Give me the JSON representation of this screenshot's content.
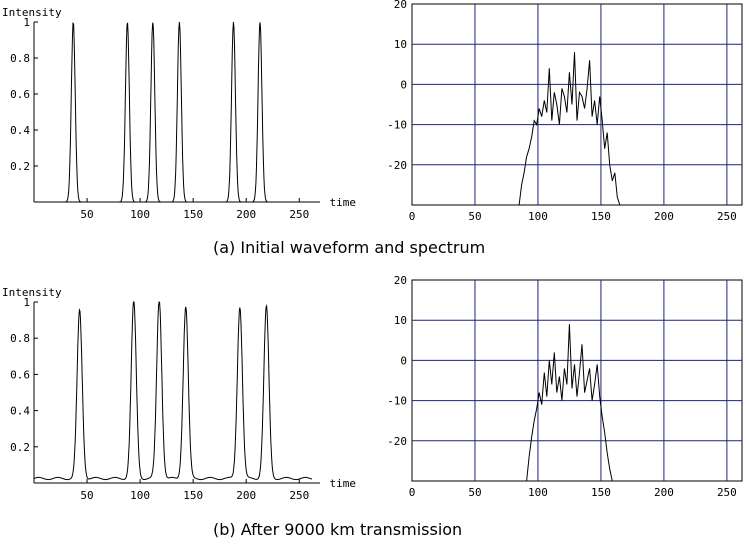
{
  "captions": [
    "(a) Initial waveform and spectrum",
    "(b) After 9000 km transmission"
  ],
  "chart_data": [
    {
      "id": "a-waveform",
      "type": "line",
      "title": "",
      "ylabel": "Intensity",
      "xlabel": "time",
      "xlim": [
        0,
        262
      ],
      "ylim": [
        0,
        1.0
      ],
      "xticks": [
        50,
        100,
        150,
        200,
        250
      ],
      "yticks": [
        0.2,
        0.4,
        0.6,
        0.8,
        1
      ],
      "ytick_labels": [
        "0.2",
        "0.4",
        "0.6",
        "0.8",
        "1"
      ],
      "grid": false,
      "pulses": [
        {
          "center": 37,
          "amplitude": 1.0,
          "width": 2.6
        },
        {
          "center": 88,
          "amplitude": 1.0,
          "width": 2.6
        },
        {
          "center": 112,
          "amplitude": 1.0,
          "width": 2.6
        },
        {
          "center": 137,
          "amplitude": 1.0,
          "width": 2.6
        },
        {
          "center": 188,
          "amplitude": 1.0,
          "width": 2.6
        },
        {
          "center": 213,
          "amplitude": 1.0,
          "width": 2.6
        }
      ],
      "baseline": 0
    },
    {
      "id": "a-spectrum",
      "type": "line",
      "title": "",
      "xlabel": "",
      "ylabel": "",
      "xlim": [
        0,
        262
      ],
      "ylim": [
        -30,
        20
      ],
      "xticks": [
        0,
        50,
        100,
        150,
        200,
        250
      ],
      "yticks": [
        -20,
        -10,
        0,
        10,
        20
      ],
      "grid": true,
      "x": [
        85,
        87,
        89,
        91,
        93,
        95,
        97,
        99,
        101,
        103,
        105,
        107,
        109,
        111,
        113,
        115,
        117,
        119,
        121,
        123,
        125,
        127,
        129,
        131,
        133,
        135,
        137,
        139,
        141,
        143,
        145,
        147,
        149,
        151,
        153,
        155,
        157,
        159,
        161,
        163,
        165
      ],
      "y": [
        -30,
        -25,
        -22,
        -18,
        -16,
        -13,
        -9,
        -10,
        -6,
        -8,
        -4,
        -7,
        4,
        -9,
        -2,
        -5,
        -10,
        -1,
        -3,
        -7,
        3,
        -5,
        8,
        -9,
        -2,
        -3,
        -6,
        -1,
        6,
        -8,
        -4,
        -10,
        -3,
        -9,
        -16,
        -12,
        -20,
        -24,
        -22,
        -28,
        -30
      ]
    },
    {
      "id": "b-waveform",
      "type": "line",
      "title": "",
      "ylabel": "Intensity",
      "xlabel": "time",
      "xlim": [
        0,
        262
      ],
      "ylim": [
        0,
        1.0
      ],
      "xticks": [
        50,
        100,
        150,
        200,
        250
      ],
      "yticks": [
        0.2,
        0.4,
        0.6,
        0.8,
        1
      ],
      "ytick_labels": [
        "0.2",
        "0.4",
        "0.6",
        "0.8",
        "1"
      ],
      "grid": false,
      "pulses": [
        {
          "center": 43,
          "amplitude": 0.93,
          "width": 3.4
        },
        {
          "center": 94,
          "amplitude": 0.98,
          "width": 3.4
        },
        {
          "center": 118,
          "amplitude": 0.99,
          "width": 3.4
        },
        {
          "center": 143,
          "amplitude": 0.95,
          "width": 3.4
        },
        {
          "center": 194,
          "amplitude": 0.95,
          "width": 3.4
        },
        {
          "center": 219,
          "amplitude": 0.95,
          "width": 3.4
        }
      ],
      "baseline": 0.025
    },
    {
      "id": "b-spectrum",
      "type": "line",
      "title": "",
      "xlabel": "",
      "ylabel": "",
      "xlim": [
        0,
        262
      ],
      "ylim": [
        -30,
        20
      ],
      "xticks": [
        0,
        50,
        100,
        150,
        200,
        250
      ],
      "yticks": [
        -20,
        -10,
        0,
        10,
        20
      ],
      "grid": true,
      "x": [
        91,
        93,
        95,
        97,
        99,
        101,
        103,
        105,
        107,
        109,
        111,
        113,
        115,
        117,
        119,
        121,
        123,
        125,
        127,
        129,
        131,
        133,
        135,
        137,
        139,
        141,
        143,
        145,
        147,
        149,
        151,
        153,
        155,
        157,
        159
      ],
      "y": [
        -30,
        -24,
        -19,
        -15,
        -12,
        -8,
        -11,
        -3,
        -9,
        0,
        -6,
        2,
        -8,
        -4,
        -10,
        -2,
        -6,
        9,
        -7,
        -1,
        -9,
        -3,
        4,
        -8,
        -5,
        -2,
        -10,
        -6,
        -1,
        -9,
        -14,
        -18,
        -23,
        -27,
        -30
      ]
    }
  ]
}
